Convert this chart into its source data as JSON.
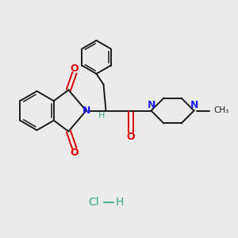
{
  "bg_color": "#ebebeb",
  "bond_color": "#1a1a1a",
  "N_color": "#2020ff",
  "O_color": "#dd0000",
  "Cl_color": "#3aaa88",
  "H_color": "#3aaa88",
  "lw": 1.4,
  "lw_inner": 1.1,
  "xlim": [
    0,
    10
  ],
  "ylim": [
    0,
    10
  ]
}
